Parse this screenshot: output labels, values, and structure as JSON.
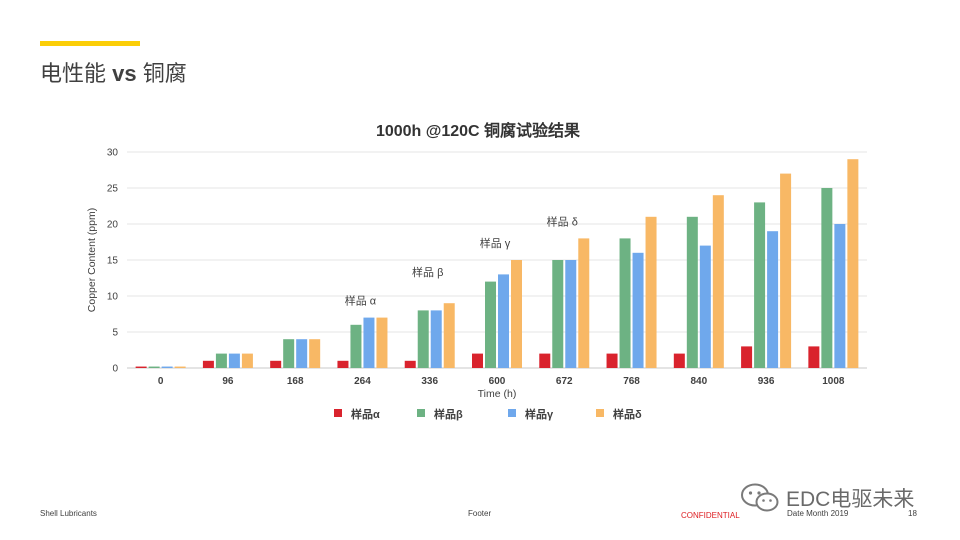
{
  "slide": {
    "title_prefix": "电性能",
    "title_vs": "vs",
    "title_suffix": "铜腐",
    "accent_color": "#FBCE07"
  },
  "footer": {
    "left": "Shell Lubricants",
    "center": "Footer",
    "confidential": "CONFIDENTIAL",
    "date": "Date Month 2019",
    "page": "18"
  },
  "watermark": {
    "text": "EDC电驱未来",
    "icon": "wechat-icon"
  },
  "chart_data": {
    "type": "bar",
    "title": "1000h @120C 铜腐试验结果",
    "xlabel": "Time (h)",
    "ylabel": "Copper Content (ppm)",
    "ylim": [
      0,
      30
    ],
    "yticks": [
      0,
      5,
      10,
      15,
      20,
      25,
      30
    ],
    "grid": true,
    "legend_position": "bottom",
    "categories": [
      "0",
      "96",
      "168",
      "264",
      "336",
      "600",
      "672",
      "768",
      "840",
      "936",
      "1008"
    ],
    "series": [
      {
        "name": "样品α",
        "color": "#D9232D",
        "values": [
          0.2,
          1,
          1,
          1,
          1,
          2,
          2,
          2,
          2,
          3,
          3
        ]
      },
      {
        "name": "样品β",
        "color": "#6DB283",
        "values": [
          0.2,
          2,
          4,
          6,
          8,
          12,
          15,
          18,
          21,
          23,
          25
        ]
      },
      {
        "name": "样品γ",
        "color": "#6FA8EC",
        "values": [
          0.2,
          2,
          4,
          7,
          8,
          13,
          15,
          16,
          17,
          19,
          20
        ]
      },
      {
        "name": "样品δ",
        "color": "#F8B865",
        "values": [
          0.2,
          2,
          4,
          7,
          9,
          15,
          18,
          21,
          24,
          27,
          29
        ]
      }
    ],
    "annotations": [
      {
        "text": "样品 α",
        "category": "264",
        "y": 8.8
      },
      {
        "text": "样品 β",
        "category": "336",
        "y": 12.8
      },
      {
        "text": "样品 γ",
        "category": "600",
        "y": 16.8
      },
      {
        "text": "样品 δ",
        "category": "672",
        "y": 19.8
      }
    ]
  }
}
